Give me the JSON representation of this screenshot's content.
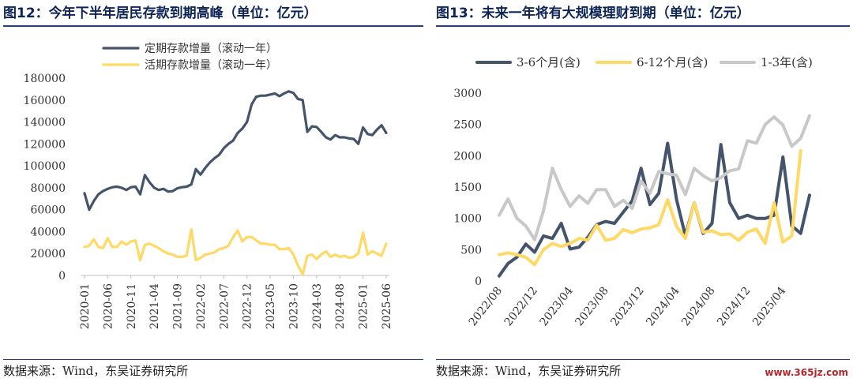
{
  "chart_data": [
    {
      "type": "line",
      "title": "图12：今年下半年居民存款到期高峰（单位：亿元）",
      "source": "数据来源：Wind，东吴证券研究所",
      "ylim": [
        0,
        180000
      ],
      "yticks": [
        0,
        20000,
        40000,
        60000,
        80000,
        100000,
        120000,
        140000,
        160000,
        180000
      ],
      "grid": false,
      "legend": "top-center",
      "xtick_labels": [
        "2020-01",
        "2020-06",
        "2020-11",
        "2021-04",
        "2021-09",
        "2022-02",
        "2022-07",
        "2022-12",
        "2023-05",
        "2023-10",
        "2024-03",
        "2024-08",
        "2025-01",
        "2025-06"
      ],
      "x": [
        "2020-01",
        "2020-02",
        "2020-03",
        "2020-04",
        "2020-05",
        "2020-06",
        "2020-07",
        "2020-08",
        "2020-09",
        "2020-10",
        "2020-11",
        "2020-12",
        "2021-01",
        "2021-02",
        "2021-03",
        "2021-04",
        "2021-05",
        "2021-06",
        "2021-07",
        "2021-08",
        "2021-09",
        "2021-10",
        "2021-11",
        "2021-12",
        "2022-01",
        "2022-02",
        "2022-03",
        "2022-04",
        "2022-05",
        "2022-06",
        "2022-07",
        "2022-08",
        "2022-09",
        "2022-10",
        "2022-11",
        "2022-12",
        "2023-01",
        "2023-02",
        "2023-03",
        "2023-04",
        "2023-05",
        "2023-06",
        "2023-07",
        "2023-08",
        "2023-09",
        "2023-10",
        "2023-11",
        "2023-12",
        "2024-01",
        "2024-02",
        "2024-03",
        "2024-04",
        "2024-05",
        "2024-06",
        "2024-07",
        "2024-08",
        "2024-09",
        "2024-10",
        "2024-11",
        "2024-12",
        "2025-01",
        "2025-02",
        "2025-03",
        "2025-04",
        "2025-05",
        "2025-06"
      ],
      "series": [
        {
          "name": "定期存款增量（滚动一年）",
          "color": "#44546a",
          "values": [
            75000,
            60000,
            68000,
            74000,
            77000,
            79000,
            80500,
            81000,
            80000,
            78000,
            80500,
            81000,
            74000,
            91500,
            85000,
            80000,
            78000,
            79000,
            76500,
            77000,
            79500,
            80500,
            81000,
            83000,
            97000,
            92000,
            98000,
            103000,
            107000,
            110000,
            116000,
            120000,
            123000,
            130000,
            134000,
            140000,
            156000,
            163000,
            164000,
            164000,
            165000,
            166000,
            163500,
            166000,
            168000,
            166500,
            161000,
            160000,
            131000,
            136000,
            135500,
            131000,
            126000,
            124000,
            128000,
            126000,
            126000,
            125000,
            124500,
            120000,
            135000,
            129000,
            128000,
            133000,
            137000,
            130000
          ]
        },
        {
          "name": "活期存款增量（滚动一年）",
          "color": "#ffd966",
          "values": [
            26000,
            27000,
            33000,
            26000,
            25000,
            34000,
            26000,
            26000,
            31000,
            28000,
            31000,
            32000,
            14000,
            28000,
            29000,
            27000,
            25000,
            22000,
            20000,
            19000,
            17000,
            17000,
            18000,
            42000,
            14000,
            16000,
            19000,
            20000,
            21000,
            24000,
            25000,
            27000,
            35000,
            41000,
            31000,
            35000,
            35000,
            32000,
            29000,
            29000,
            28000,
            28000,
            24000,
            24000,
            25000,
            19000,
            9000,
            1000,
            18000,
            19000,
            15000,
            19000,
            22000,
            17000,
            19000,
            17000,
            18000,
            16000,
            17000,
            20000,
            39000,
            19000,
            22000,
            20000,
            18000,
            29000
          ]
        }
      ]
    },
    {
      "type": "line",
      "title": "图13：未来一年将有大规模理财到期（单位：亿元）",
      "source": "数据来源：Wind，东吴证券研究所",
      "ylim": [
        0,
        3000
      ],
      "yticks": [
        0,
        500,
        1000,
        1500,
        2000,
        2500,
        3000
      ],
      "grid": false,
      "legend": "top",
      "xtick_labels": [
        "2022/08",
        "2022/12",
        "2023/04",
        "2023/08",
        "2023/12",
        "2024/04",
        "2024/08",
        "2024/12",
        "2025/04"
      ],
      "x": [
        "2022/08",
        "2022/09",
        "2022/10",
        "2022/11",
        "2022/12",
        "2023/01",
        "2023/02",
        "2023/03",
        "2023/04",
        "2023/05",
        "2023/06",
        "2023/07",
        "2023/08",
        "2023/09",
        "2023/10",
        "2023/11",
        "2023/12",
        "2024/01",
        "2024/02",
        "2024/03",
        "2024/04",
        "2024/05",
        "2024/06",
        "2024/07",
        "2024/08",
        "2024/09",
        "2024/10",
        "2024/11",
        "2024/12",
        "2025/01",
        "2025/02",
        "2025/03",
        "2025/04",
        "2025/05",
        "2025/06",
        "2025/07"
      ],
      "series": [
        {
          "name": "3-6个月(含)",
          "color": "#44546a",
          "values": [
            80,
            280,
            380,
            590,
            460,
            720,
            680,
            920,
            510,
            540,
            700,
            900,
            950,
            920,
            1100,
            1280,
            1800,
            1220,
            1400,
            2200,
            1300,
            720,
            1250,
            760,
            920,
            2180,
            1250,
            1000,
            1050,
            1000,
            1000,
            1050,
            1980,
            880,
            760,
            1370
          ]
        },
        {
          "name": "6-12个月(含)",
          "color": "#ffd966",
          "values": [
            420,
            450,
            420,
            380,
            260,
            500,
            600,
            550,
            600,
            680,
            650,
            890,
            650,
            680,
            820,
            770,
            830,
            850,
            900,
            1300,
            870,
            680,
            1250,
            780,
            800,
            740,
            750,
            650,
            780,
            830,
            600,
            1250,
            620,
            720,
            2080,
            null
          ]
        },
        {
          "name": "1-3年(含)",
          "color": "#c8c8c8",
          "values": [
            1050,
            1310,
            1000,
            880,
            660,
            1120,
            1800,
            1460,
            1190,
            1360,
            1240,
            1460,
            1460,
            1190,
            1290,
            1160,
            1600,
            1400,
            1750,
            1710,
            1690,
            1380,
            1800,
            1680,
            1600,
            1650,
            1760,
            1790,
            2240,
            2200,
            2500,
            2620,
            2490,
            2150,
            2280,
            2640
          ]
        }
      ]
    }
  ],
  "footer": {
    "source_left": "数据来源：Wind，东吴证券研究所",
    "source_right": "数据来源：Wind，东吴证券研究所",
    "watermark": "www.365jz.com"
  }
}
